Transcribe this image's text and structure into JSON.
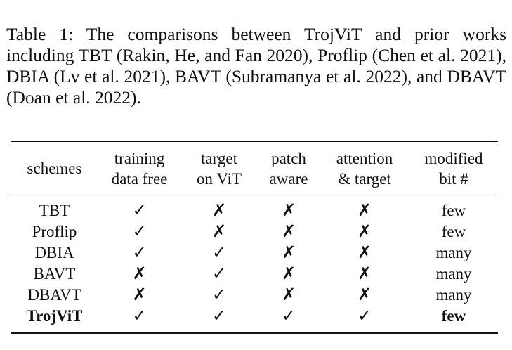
{
  "caption": "Table 1: The comparisons between TrojViT and prior works including TBT (Rakin, He, and Fan 2020), Proflip (Chen et al. 2021), DBIA (Lv et al. 2021), BAVT (Subramanya et al. 2022), and DBAVT (Doan et al. 2022).",
  "table": {
    "headers": [
      [
        "schemes"
      ],
      [
        "training",
        "data free"
      ],
      [
        "target",
        "on ViT"
      ],
      [
        "patch",
        "aware"
      ],
      [
        "attention",
        "& target"
      ],
      [
        "modified",
        "bit #"
      ]
    ],
    "rows": [
      {
        "cells": [
          "TBT",
          "✓",
          "✗",
          "✗",
          "✗",
          "few"
        ],
        "bold": false
      },
      {
        "cells": [
          "Proflip",
          "✓",
          "✗",
          "✗",
          "✗",
          "few"
        ],
        "bold": false
      },
      {
        "cells": [
          "DBIA",
          "✓",
          "✓",
          "✗",
          "✗",
          "many"
        ],
        "bold": false
      },
      {
        "cells": [
          "BAVT",
          "✗",
          "✓",
          "✗",
          "✗",
          "many"
        ],
        "bold": false
      },
      {
        "cells": [
          "DBAVT",
          "✗",
          "✓",
          "✗",
          "✗",
          "many"
        ],
        "bold": false
      },
      {
        "cells": [
          "TrojViT",
          "✓",
          "✓",
          "✓",
          "✓",
          "few"
        ],
        "bold": true
      }
    ]
  }
}
